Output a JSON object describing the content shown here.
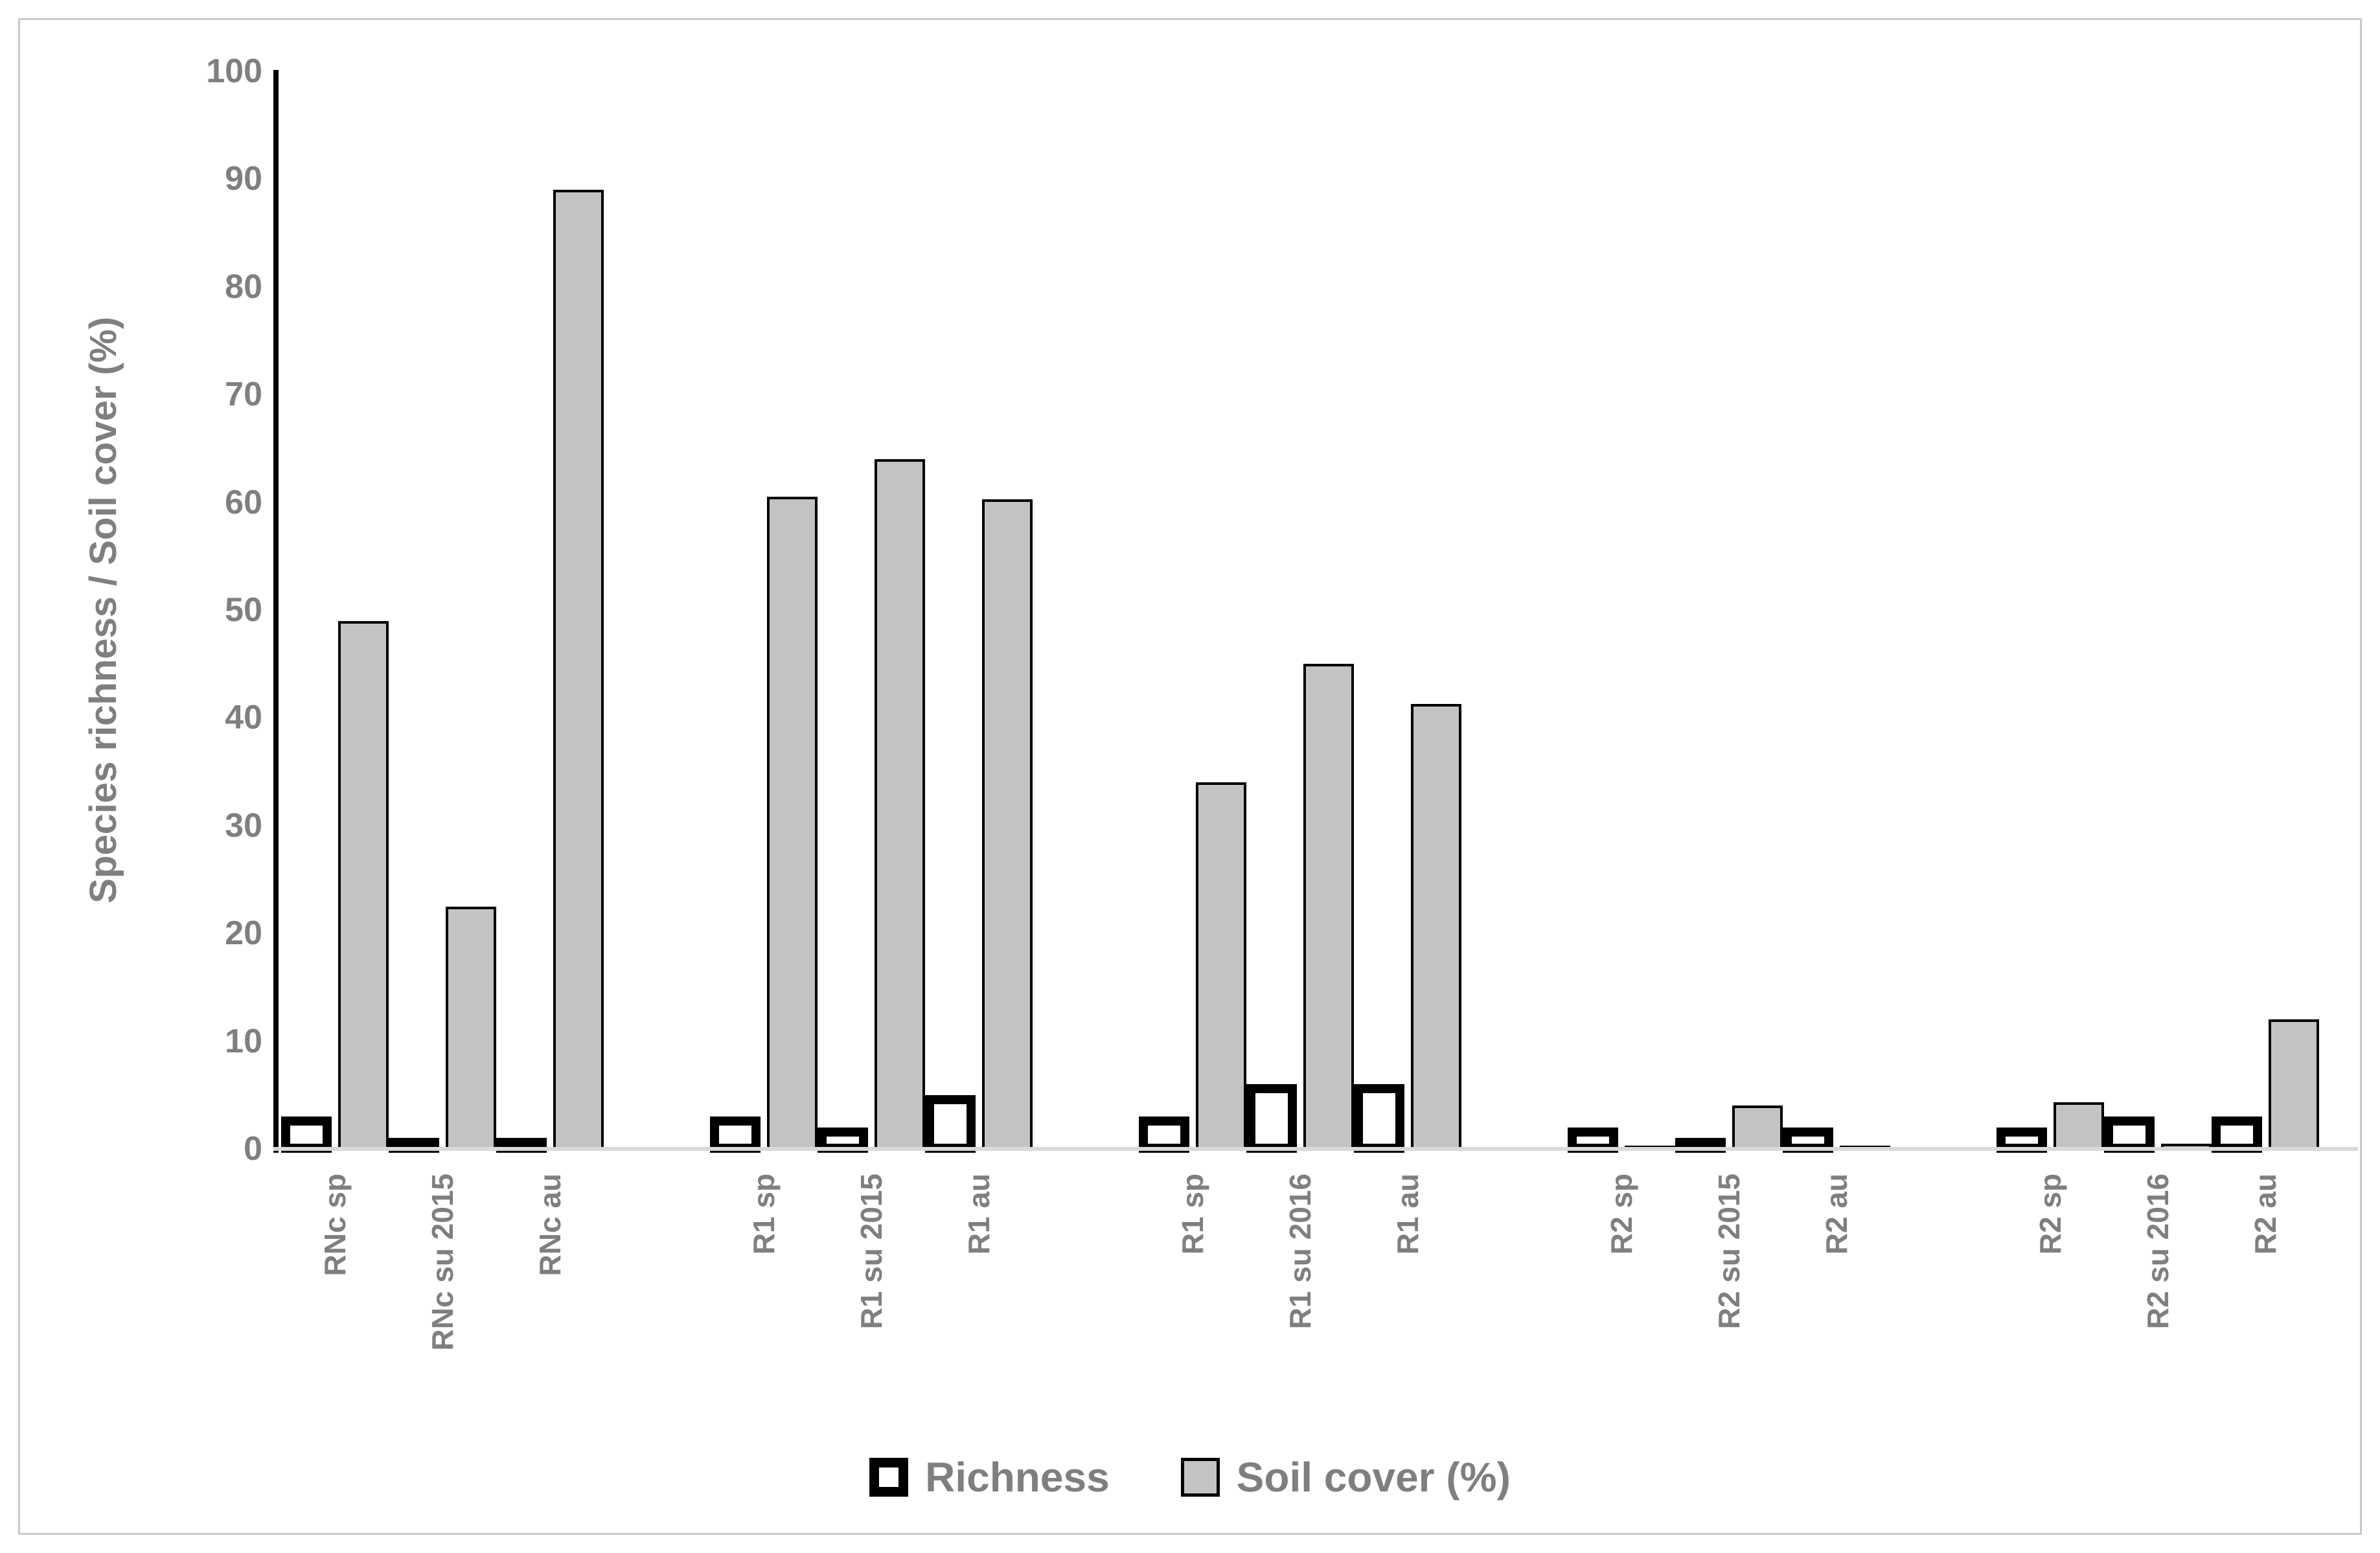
{
  "chart_data": {
    "type": "bar",
    "title": "",
    "ylabel": "Species richness / Soil cover (%)",
    "xlabel": "",
    "ylim": [
      0,
      100
    ],
    "y_ticks": [
      0,
      10,
      20,
      30,
      40,
      50,
      60,
      70,
      80,
      90,
      100
    ],
    "grid": false,
    "legend_position": "bottom-center",
    "group_size": 3,
    "categories": [
      "RNc sp",
      "RNc su 2015",
      "RNc au",
      "R1 sp",
      "R1 su 2015",
      "R1 au",
      "R1 sp",
      "R1 su 2016",
      "R1 au",
      "R2 sp",
      "R2 su 2015",
      "R2 au",
      "R2 sp",
      "R2 su 2016",
      "R2 au"
    ],
    "series": [
      {
        "name": "Richness",
        "swatch": "white-black-outline",
        "values": [
          3,
          1,
          1,
          3,
          2,
          5,
          3,
          6,
          6,
          2,
          1,
          2,
          2,
          3,
          3
        ]
      },
      {
        "name": "Soil cover (%)",
        "swatch": "gray",
        "values": [
          49,
          22.5,
          89,
          60.5,
          64,
          60.3,
          34,
          45,
          41.3,
          0.3,
          4,
          0.3,
          4.3,
          0.5,
          12
        ]
      }
    ],
    "colors": {
      "soil_fill": "#c3c3c3",
      "bar_outline": "#000000",
      "axis_line": "#000000",
      "label_text": "#7f7f7f",
      "baseline": "#d9d9d9",
      "frame_border": "#c9c9c9",
      "background": "#ffffff"
    }
  }
}
